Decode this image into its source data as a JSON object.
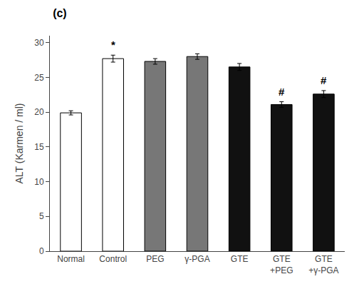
{
  "chart_data": {
    "type": "bar",
    "title": "(c)",
    "categories": [
      "Normal",
      "Control",
      "PEG",
      "γ-PGA",
      "GTE",
      "GTE\n+PEG",
      "GTE\n+γ-PGA"
    ],
    "values": [
      19.9,
      27.7,
      27.3,
      28.0,
      26.5,
      21.1,
      22.6
    ],
    "errors": [
      0.3,
      0.5,
      0.4,
      0.4,
      0.5,
      0.4,
      0.5
    ],
    "colors": [
      "white",
      "white",
      "#777777",
      "#777777",
      "#111111",
      "#111111",
      "#111111"
    ],
    "annotations": [
      null,
      "*",
      null,
      null,
      null,
      "#",
      "#"
    ],
    "ylabel": "ALT (Karmen / ml)",
    "ylim": [
      0,
      31
    ],
    "yticks": [
      0,
      5,
      10,
      15,
      20,
      25,
      30
    ],
    "grid": false
  }
}
